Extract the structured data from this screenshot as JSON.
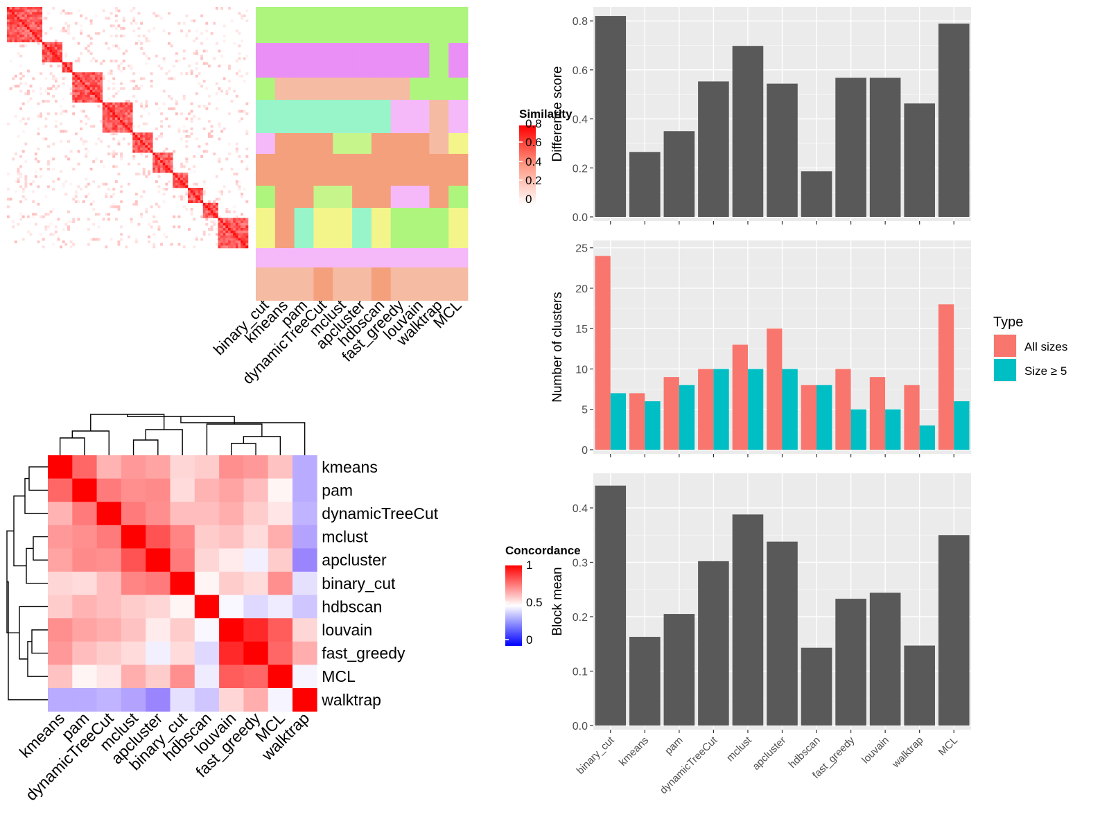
{
  "similarity_panel": {
    "legend_title": "Similarity",
    "legend_ticks": [
      "0.8",
      "0.6",
      "0.4",
      "0.2",
      "0"
    ],
    "class_columns": [
      "binary_cut",
      "kmeans",
      "pam",
      "dynamicTreeCut",
      "mclust",
      "apcluster",
      "hdbscan",
      "fast_greedy",
      "louvain",
      "walktrap",
      "MCL"
    ],
    "colors": {
      "high": "#ff0000",
      "low": "#ffffff"
    }
  },
  "concordance_panel": {
    "legend_title": "Concordance",
    "legend_ticks": [
      "1",
      "0.5",
      "0"
    ],
    "colors": {
      "high": "#ff0000",
      "mid": "#ffffff",
      "low": "#0000ff"
    }
  },
  "chart_data": [
    {
      "type": "bar",
      "ylabel": "Difference score",
      "categories": [
        "binary_cut",
        "kmeans",
        "pam",
        "dynamicTreeCut",
        "mclust",
        "apcluster",
        "hdbscan",
        "fast_greedy",
        "louvain",
        "walktrap",
        "MCL"
      ],
      "values": [
        0.82,
        0.265,
        0.35,
        0.553,
        0.698,
        0.544,
        0.186,
        0.568,
        0.568,
        0.463,
        0.789
      ],
      "yticks": [
        "0.0",
        "0.2",
        "0.4",
        "0.6",
        "0.8"
      ],
      "ylim": [
        0,
        0.84
      ],
      "grid": true,
      "color": "#595959"
    },
    {
      "type": "bar",
      "ylabel": "Number of clusters",
      "categories": [
        "binary_cut",
        "kmeans",
        "pam",
        "dynamicTreeCut",
        "mclust",
        "apcluster",
        "hdbscan",
        "fast_greedy",
        "louvain",
        "walktrap",
        "MCL"
      ],
      "series": [
        {
          "name": "All sizes",
          "values": [
            24,
            7,
            9,
            10,
            13,
            15,
            8,
            10,
            9,
            8,
            18
          ],
          "color": "#f8766d"
        },
        {
          "name": "Size ≥ 5",
          "values": [
            7,
            6,
            8,
            10,
            10,
            10,
            8,
            5,
            5,
            3,
            6
          ],
          "color": "#00bfc4"
        }
      ],
      "yticks": [
        "0",
        "5",
        "10",
        "15",
        "20",
        "25"
      ],
      "ylim": [
        0,
        25.4
      ],
      "grid": true,
      "legend": {
        "title": "Type",
        "position": "right"
      }
    },
    {
      "type": "bar",
      "ylabel": "Block mean",
      "categories": [
        "binary_cut",
        "kmeans",
        "pam",
        "dynamicTreeCut",
        "mclust",
        "apcluster",
        "hdbscan",
        "fast_greedy",
        "louvain",
        "walktrap",
        "MCL"
      ],
      "values": [
        0.441,
        0.163,
        0.205,
        0.302,
        0.388,
        0.338,
        0.143,
        0.233,
        0.244,
        0.147,
        0.35
      ],
      "yticks": [
        "0.0",
        "0.1",
        "0.2",
        "0.3",
        "0.4"
      ],
      "ylim": [
        0,
        0.456
      ],
      "grid": true,
      "color": "#595959"
    },
    {
      "type": "heatmap",
      "rows": [
        "kmeans",
        "pam",
        "dynamicTreeCut",
        "mclust",
        "apcluster",
        "binary_cut",
        "hdbscan",
        "louvain",
        "fast_greedy",
        "MCL",
        "walktrap"
      ],
      "columns": [
        "kmeans",
        "pam",
        "dynamicTreeCut",
        "mclust",
        "apcluster",
        "binary_cut",
        "hdbscan",
        "louvain",
        "fast_greedy",
        "MCL",
        "walktrap"
      ],
      "values": [
        [
          1.0,
          0.8,
          0.65,
          0.7,
          0.68,
          0.58,
          0.6,
          0.72,
          0.7,
          0.62,
          0.28
        ],
        [
          0.8,
          1.0,
          0.76,
          0.72,
          0.73,
          0.57,
          0.65,
          0.68,
          0.63,
          0.52,
          0.28
        ],
        [
          0.65,
          0.76,
          1.0,
          0.76,
          0.72,
          0.63,
          0.63,
          0.66,
          0.6,
          0.55,
          0.3
        ],
        [
          0.7,
          0.72,
          0.76,
          1.0,
          0.84,
          0.74,
          0.6,
          0.62,
          0.57,
          0.66,
          0.26
        ],
        [
          0.68,
          0.73,
          0.72,
          0.84,
          1.0,
          0.76,
          0.58,
          0.54,
          0.46,
          0.6,
          0.18
        ],
        [
          0.58,
          0.57,
          0.63,
          0.74,
          0.76,
          1.0,
          0.52,
          0.6,
          0.57,
          0.72,
          0.42
        ],
        [
          0.6,
          0.65,
          0.63,
          0.6,
          0.58,
          0.52,
          1.0,
          0.48,
          0.4,
          0.45,
          0.35
        ],
        [
          0.72,
          0.68,
          0.66,
          0.62,
          0.54,
          0.6,
          0.48,
          1.0,
          0.92,
          0.82,
          0.58
        ],
        [
          0.7,
          0.63,
          0.6,
          0.57,
          0.46,
          0.57,
          0.4,
          0.92,
          1.0,
          0.8,
          0.66
        ],
        [
          0.62,
          0.52,
          0.55,
          0.66,
          0.6,
          0.72,
          0.45,
          0.82,
          0.8,
          1.0,
          0.47
        ],
        [
          0.28,
          0.28,
          0.3,
          0.26,
          0.18,
          0.42,
          0.35,
          0.58,
          0.66,
          0.47,
          1.0
        ]
      ],
      "scale": [
        0,
        1
      ]
    }
  ]
}
